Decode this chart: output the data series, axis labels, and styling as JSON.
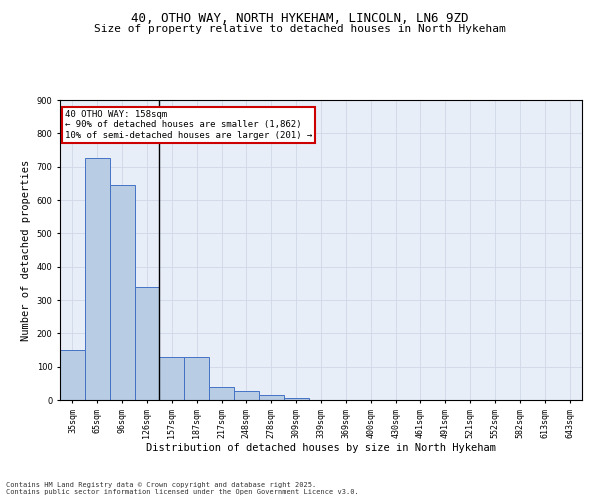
{
  "title_line1": "40, OTHO WAY, NORTH HYKEHAM, LINCOLN, LN6 9ZD",
  "title_line2": "Size of property relative to detached houses in North Hykeham",
  "xlabel": "Distribution of detached houses by size in North Hykeham",
  "ylabel": "Number of detached properties",
  "categories": [
    "35sqm",
    "65sqm",
    "96sqm",
    "126sqm",
    "157sqm",
    "187sqm",
    "217sqm",
    "248sqm",
    "278sqm",
    "309sqm",
    "339sqm",
    "369sqm",
    "400sqm",
    "430sqm",
    "461sqm",
    "491sqm",
    "521sqm",
    "552sqm",
    "582sqm",
    "613sqm",
    "643sqm"
  ],
  "values": [
    150,
    725,
    645,
    340,
    130,
    130,
    40,
    28,
    15,
    5,
    0,
    0,
    0,
    0,
    0,
    0,
    0,
    0,
    0,
    0,
    0
  ],
  "bar_color": "#b8cce4",
  "bar_edge_color": "#4472c4",
  "highlight_bar_index": 3,
  "highlight_line_color": "#000000",
  "annotation_text": "40 OTHO WAY: 158sqm\n← 90% of detached houses are smaller (1,862)\n10% of semi-detached houses are larger (201) →",
  "annotation_box_color": "#ffffff",
  "annotation_box_edge_color": "#cc0000",
  "grid_color": "#d0d8e8",
  "background_color": "#e8eef8",
  "ylim": [
    0,
    900
  ],
  "yticks": [
    0,
    100,
    200,
    300,
    400,
    500,
    600,
    700,
    800,
    900
  ],
  "footer_text": "Contains HM Land Registry data © Crown copyright and database right 2025.\nContains public sector information licensed under the Open Government Licence v3.0.",
  "title_fontsize": 9,
  "subtitle_fontsize": 8,
  "tick_fontsize": 6,
  "label_fontsize": 7.5,
  "annotation_fontsize": 6.5,
  "footer_fontsize": 5
}
